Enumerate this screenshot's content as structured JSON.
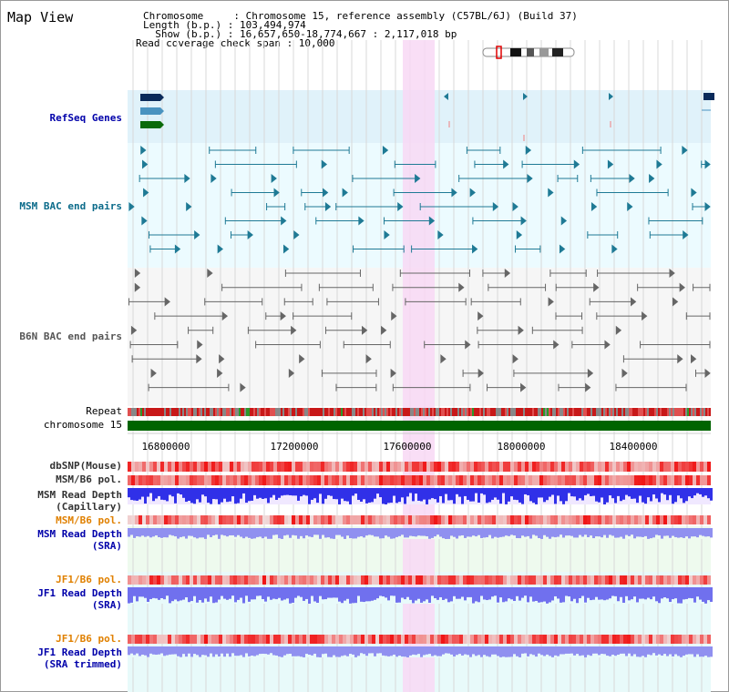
{
  "page": {
    "title": "Map View"
  },
  "header": {
    "chromosome": "Chromosome     : Chromosome 15, reference assembly (C57BL/6J) (Build 37)",
    "length": "Length (b.p.) : 103,494,974",
    "show": "  Show (b.p.) : 16,657,650-18,774,667 : 2,117,018 bp",
    "coverage": "Read coverage check span : 10,000"
  },
  "tracks": {
    "refseq": "RefSeq Genes",
    "msm_bac": "MSM BAC end pairs",
    "b6n_bac": "B6N BAC end pairs",
    "repeat": "Repeat",
    "chromosome": "chromosome 15",
    "dbsnp": "dbSNP(Mouse)",
    "msm_b6_pol_1": "MSM/B6 pol.",
    "msm_depth_cap_1": "MSM Read Depth",
    "msm_depth_cap_2": "(Capillary)",
    "msm_b6_pol_2": "MSM/B6 pol.",
    "msm_depth_sra_1": "MSM Read Depth",
    "msm_depth_sra_2": "(SRA)",
    "jf1_pol_1": "JF1/B6 pol.",
    "jf1_depth_sra_1": "JF1 Read Depth",
    "jf1_depth_sra_2": "(SRA)",
    "jf1_pol_2": "JF1/B6 pol.",
    "jf1_depth_trim_1": "JF1 Read Depth",
    "jf1_depth_trim_2": "(SRA trimmed)"
  },
  "axis": {
    "ticks": [
      "16800000",
      "17200000",
      "17600000",
      "18000000",
      "18400000"
    ]
  },
  "colors": {
    "refseq_bg": "#e0f2fa",
    "msm_bg": "#ecfbff",
    "b6n_bg": "#f6f6f6",
    "highlight": "#f8d8f4",
    "msm_line": "#1f7a95",
    "b6n_line": "#666666",
    "chromosome": "#006400",
    "label_blue": "#0000aa",
    "label_orange": "#e08000",
    "label_teal": "#0b6b8a"
  }
}
